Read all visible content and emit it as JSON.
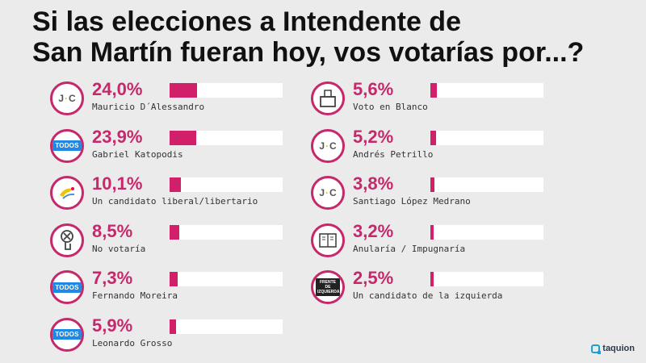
{
  "colors": {
    "accent": "#c5286b",
    "bar": "#d11f6a",
    "track": "#ffffff",
    "background": "#ebebeb"
  },
  "chart_data": {
    "type": "bar",
    "title": "Si las elecciones a Intendente de San Martín fueran hoy, vos votarías por...?",
    "title_line1": "Si las elecciones a Intendente de",
    "title_line2": "San Martín fueran hoy, vos votarías por...?",
    "max_value": 100,
    "categories": [
      "Mauricio D´Alessandro",
      "Gabriel Katopodis",
      "Un candidato liberal/libertario",
      "No votaría",
      "Fernando Moreira",
      "Leonardo Grosso",
      "Voto en Blanco",
      "Andrés Petrillo",
      "Santiago López Medrano",
      "Anularía / Impugnaría",
      "Un candidato de la izquierda"
    ],
    "values": [
      24.0,
      23.9,
      10.1,
      8.5,
      7.3,
      5.9,
      5.6,
      5.2,
      3.8,
      3.2,
      2.5
    ],
    "labels": [
      "24,0%",
      "23,9%",
      "10,1%",
      "8,5%",
      "7,3%",
      "5,9%",
      "5,6%",
      "5,2%",
      "3,8%",
      "3,2%",
      "2,5%"
    ],
    "icons": [
      "jc-logo",
      "todos-logo",
      "liberal-icon",
      "no-vote-icon",
      "todos-logo",
      "todos-logo",
      "ballot-box-icon",
      "jc-logo",
      "jc-logo",
      "void-ballot-icon",
      "frente-izquierda-logo"
    ],
    "logo_texts": {
      "jc": [
        "J",
        "C"
      ],
      "todos": "TODOS",
      "frente": "FRENTE DE IZQUIERDA"
    }
  },
  "brand": "taquion"
}
